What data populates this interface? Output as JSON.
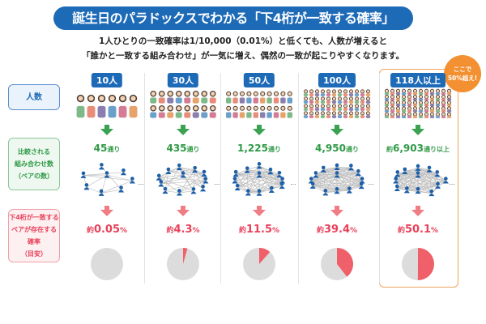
{
  "title": "誕生日のパラドックスでわかる「下4桁が一致する確率」",
  "subtitle": [
    "1人ひとりの一致確率は1/10,000（0.01%）と低くても、人数が増えると",
    "「誰かと一致する組み合わせ」が一気に増え、偶然の一致が起こりやすくなります。"
  ],
  "row_labels": {
    "people": "人数",
    "pairs": [
      "比較される",
      "組み合わせ数",
      "（ペアの数）"
    ],
    "prob": [
      "下4桁が一致する",
      "ペアが存在する確率",
      "（目安）"
    ]
  },
  "callout": [
    "ここで",
    "50%超え!"
  ],
  "colors": {
    "blue": "#1d6ab7",
    "green": "#2e9a45",
    "red": "#e8415a",
    "pie_fill": "#f0606a",
    "pie_bg": "#dcdcdc",
    "highlight": "#f0a35e"
  },
  "columns": [
    {
      "people": "10人",
      "prefix": "",
      "pairs": "45",
      "pairs_unit": "通り",
      "pairs_suffix": "",
      "pct_prefix": "約",
      "pct": "0.05",
      "pct_unit": "%",
      "prob": 0.05
    },
    {
      "people": "30人",
      "prefix": "",
      "pairs": "435",
      "pairs_unit": "通り",
      "pairs_suffix": "",
      "pct_prefix": "約",
      "pct": "4.3",
      "pct_unit": "%",
      "prob": 4.3
    },
    {
      "people": "50人",
      "prefix": "",
      "pairs": "1,225",
      "pairs_unit": "通り",
      "pairs_suffix": "",
      "pct_prefix": "約",
      "pct": "11.5",
      "pct_unit": "%",
      "prob": 11.5
    },
    {
      "people": "100人",
      "prefix": "",
      "pairs": "4,950",
      "pairs_unit": "通り",
      "pairs_suffix": "",
      "pct_prefix": "約",
      "pct": "39.4",
      "pct_unit": "%",
      "prob": 39.4
    },
    {
      "people": "118人以上",
      "prefix": "約",
      "pairs": "6,903",
      "pairs_unit": "通り",
      "pairs_suffix": "以上",
      "pct_prefix": "約",
      "pct": "50.1",
      "pct_unit": "%",
      "prob": 50.1
    }
  ]
}
